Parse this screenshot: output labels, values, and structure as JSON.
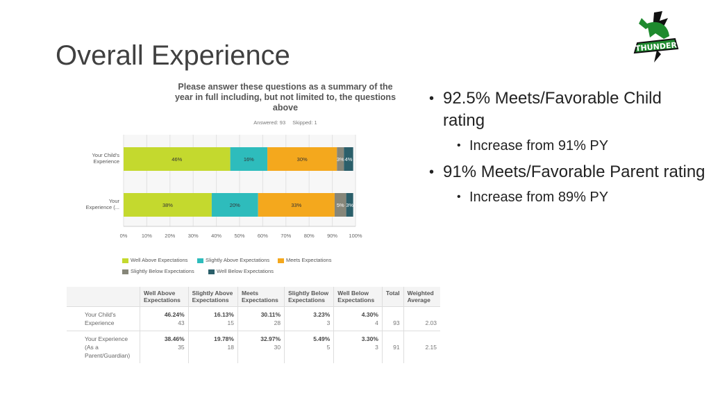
{
  "slide": {
    "title": "Overall Experience"
  },
  "logo": {
    "icon": "thunder-logo-icon",
    "colors": {
      "green": "#1e8a2e",
      "black": "#111111"
    }
  },
  "chart_data": {
    "type": "bar",
    "orientation": "horizontal-stacked",
    "title": "Please answer these questions as a summary of the year in full including, but not limited to, the questions above",
    "answered_label": "Answered: 93",
    "skipped_label": "Skipped: 1",
    "categories": [
      "Your Child's Experience",
      "Your Experience (..."
    ],
    "xlim": [
      0,
      100
    ],
    "x_ticks": [
      "0%",
      "10%",
      "20%",
      "30%",
      "40%",
      "50%",
      "60%",
      "70%",
      "80%",
      "90%",
      "100%"
    ],
    "grid": true,
    "legend_position": "bottom",
    "series": [
      {
        "name": "Well Above Expectations",
        "color": "#c4d92e",
        "values": [
          46,
          38
        ],
        "labels": [
          "46%",
          "38%"
        ]
      },
      {
        "name": "Slightly Above Expectations",
        "color": "#2ebcbc",
        "values": [
          16,
          20
        ],
        "labels": [
          "16%",
          "20%"
        ]
      },
      {
        "name": "Meets Expectations",
        "color": "#f4a81d",
        "values": [
          30,
          33
        ],
        "labels": [
          "30%",
          "33%"
        ]
      },
      {
        "name": "Slightly Below Expectations",
        "color": "#868679",
        "values": [
          3,
          5
        ],
        "labels": [
          "3%",
          "5%"
        ]
      },
      {
        "name": "Well Below Expectations",
        "color": "#2b5f6a",
        "values": [
          4,
          3
        ],
        "labels": [
          "4%",
          "3%"
        ]
      }
    ]
  },
  "table": {
    "headers": [
      "",
      "Well Above Expectations",
      "Slightly Above Expectations",
      "Meets Expectations",
      "Slightly Below Expectations",
      "Well Below Expectations",
      "Total",
      "Weighted Average"
    ],
    "rows": [
      {
        "label": "Your Child's Experience",
        "cells": [
          {
            "pct": "46.24%",
            "count": "43"
          },
          {
            "pct": "16.13%",
            "count": "15"
          },
          {
            "pct": "30.11%",
            "count": "28"
          },
          {
            "pct": "3.23%",
            "count": "3"
          },
          {
            "pct": "4.30%",
            "count": "4"
          }
        ],
        "total": "93",
        "weighted": "2.03"
      },
      {
        "label": "Your Experience (As a Parent/Guardian)",
        "cells": [
          {
            "pct": "38.46%",
            "count": "35"
          },
          {
            "pct": "19.78%",
            "count": "18"
          },
          {
            "pct": "32.97%",
            "count": "30"
          },
          {
            "pct": "5.49%",
            "count": "5"
          },
          {
            "pct": "3.30%",
            "count": "3"
          }
        ],
        "total": "91",
        "weighted": "2.15"
      }
    ]
  },
  "bullets": [
    {
      "text": "92.5% Meets/Favorable Child rating",
      "sub": "Increase from 91% PY"
    },
    {
      "text": "91% Meets/Favorable Parent rating",
      "sub": "Increase from 89% PY"
    }
  ]
}
